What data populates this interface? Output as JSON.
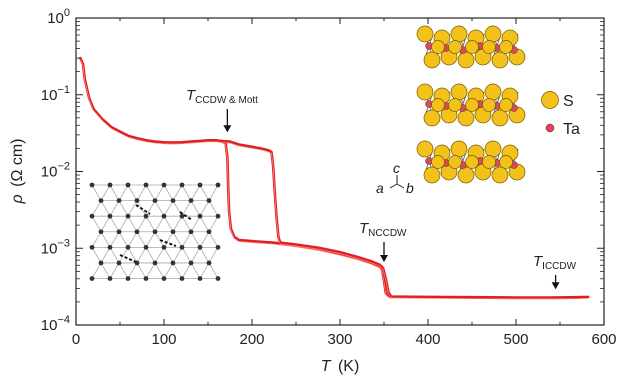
{
  "chart_data": {
    "type": "line",
    "xlabel_var": "T",
    "xlabel_unit": "(K)",
    "ylabel_var": "ρ",
    "ylabel_unit": "(Ω cm)",
    "xlim": [
      0,
      600
    ],
    "ylim_log10": [
      -4,
      0
    ],
    "y_scale": "log",
    "x_ticks": [
      0,
      100,
      200,
      300,
      400,
      500,
      600
    ],
    "x_tick_labels": [
      "0",
      "100",
      "200",
      "300",
      "400",
      "500",
      "600"
    ],
    "y_ticks_log10": [
      -4,
      -3,
      -2,
      -1,
      0
    ],
    "y_tick_labels": [
      {
        "base": "10",
        "exp": "−4"
      },
      {
        "base": "10",
        "exp": "−3"
      },
      {
        "base": "10",
        "exp": "−2"
      },
      {
        "base": "10",
        "exp": "−1"
      },
      {
        "base": "10",
        "exp": "0"
      }
    ],
    "series_color": "#e02020",
    "series": [
      {
        "points": [
          [
            5,
            0.3
          ],
          [
            8,
            0.25
          ],
          [
            10,
            0.16
          ],
          [
            15,
            0.09
          ],
          [
            20,
            0.065
          ],
          [
            30,
            0.048
          ],
          [
            40,
            0.038
          ],
          [
            50,
            0.033
          ],
          [
            60,
            0.029
          ],
          [
            70,
            0.027
          ],
          [
            80,
            0.0255
          ],
          [
            90,
            0.0245
          ],
          [
            100,
            0.024
          ],
          [
            110,
            0.0238
          ],
          [
            120,
            0.024
          ],
          [
            130,
            0.0245
          ],
          [
            140,
            0.025
          ],
          [
            150,
            0.0255
          ],
          [
            160,
            0.0255
          ],
          [
            165,
            0.025
          ],
          [
            170,
            0.0235
          ],
          [
            172,
            0.015
          ],
          [
            173,
            0.006
          ],
          [
            174,
            0.003
          ],
          [
            176,
            0.0018
          ],
          [
            180,
            0.0014
          ],
          [
            185,
            0.00128
          ],
          [
            200,
            0.00124
          ],
          [
            225,
            0.00118
          ],
          [
            250,
            0.00109
          ],
          [
            275,
            0.00098
          ],
          [
            300,
            0.00085
          ],
          [
            320,
            0.00074
          ],
          [
            335,
            0.00065
          ],
          [
            345,
            0.00058
          ],
          [
            348,
            0.00052
          ],
          [
            350,
            0.00038
          ],
          [
            352,
            0.00026
          ],
          [
            356,
            0.000235
          ],
          [
            400,
            0.000232
          ],
          [
            450,
            0.00023
          ],
          [
            500,
            0.000228
          ],
          [
            540,
            0.000228
          ],
          [
            570,
            0.00023
          ],
          [
            582,
            0.000232
          ]
        ]
      },
      {
        "points": [
          [
            165,
            0.025
          ],
          [
            175,
            0.0245
          ],
          [
            185,
            0.0225
          ],
          [
            200,
            0.021
          ],
          [
            210,
            0.02
          ],
          [
            218,
            0.019
          ],
          [
            222,
            0.018
          ],
          [
            224,
            0.012
          ],
          [
            226,
            0.005
          ],
          [
            228,
            0.0025
          ],
          [
            230,
            0.0014
          ],
          [
            232,
            0.00118
          ],
          [
            250,
            0.00112
          ],
          [
            275,
            0.00102
          ],
          [
            300,
            0.00089
          ],
          [
            320,
            0.00077
          ],
          [
            335,
            0.00068
          ],
          [
            345,
            0.00061
          ],
          [
            349,
            0.00055
          ],
          [
            352,
            0.0004
          ],
          [
            355,
            0.00027
          ],
          [
            358,
            0.000235
          ]
        ]
      }
    ],
    "annotations": [
      {
        "var": "T",
        "sub": "CCDW & Mott",
        "x": 172,
        "y": 0.0255
      },
      {
        "var": "T",
        "sub": "NCCDW",
        "x": 350,
        "y": 0.00052
      },
      {
        "var": "T",
        "sub": "ICCDW",
        "x": 545,
        "y": 0.00023
      }
    ]
  },
  "structure_inset": {
    "legend": [
      {
        "label": "S",
        "color": "#f2c21b"
      },
      {
        "label": "Ta",
        "color": "#d84a5a"
      }
    ],
    "axes_labels": {
      "c": "c",
      "a": "a",
      "b": "b"
    }
  },
  "lattice_inset": {
    "description_icon": "star-of-david-lattice-icon"
  }
}
